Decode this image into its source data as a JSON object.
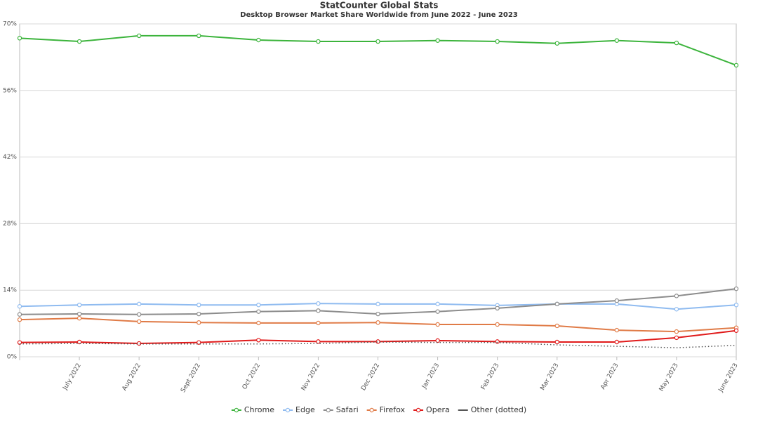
{
  "chart_data": {
    "type": "line",
    "title": "StatCounter Global Stats",
    "subtitle": "Desktop Browser Market Share Worldwide from June 2022 - June 2023",
    "categories": [
      null,
      "July 2022",
      "Aug 2022",
      "Sept 2022",
      "Oct 2022",
      "Nov 2022",
      "Dec 2022",
      "Jan 2023",
      "Feb 2023",
      "Mar 2023",
      "Apr 2023",
      "May 2023",
      "June 2023"
    ],
    "ylim": [
      0,
      70
    ],
    "yticks": [
      {
        "value": 0,
        "label": "0%"
      },
      {
        "value": 14,
        "label": "14%"
      },
      {
        "value": 28,
        "label": "28%"
      },
      {
        "value": 42,
        "label": "42%"
      },
      {
        "value": 56,
        "label": "56%"
      },
      {
        "value": 70,
        "label": "70%"
      }
    ],
    "grid": true,
    "legend": "bottom",
    "series": [
      {
        "name": "Chrome",
        "color": "#3cb43c",
        "markers": true,
        "values": [
          67.0,
          66.3,
          67.5,
          67.5,
          66.6,
          66.3,
          66.3,
          66.5,
          66.3,
          65.9,
          66.5,
          66.0,
          61.3
        ]
      },
      {
        "name": "Edge",
        "color": "#8fbbf0",
        "markers": true,
        "values": [
          10.6,
          10.9,
          11.1,
          10.9,
          10.9,
          11.2,
          11.1,
          11.1,
          10.8,
          11.1,
          11.1,
          10.0,
          10.9
        ]
      },
      {
        "name": "Safari",
        "color": "#8c8c8c",
        "markers": true,
        "values": [
          8.9,
          9.0,
          8.9,
          9.0,
          9.5,
          9.7,
          9.0,
          9.5,
          10.2,
          11.1,
          11.8,
          12.8,
          14.3
        ]
      },
      {
        "name": "Firefox",
        "color": "#e07b47",
        "markers": true,
        "values": [
          7.8,
          8.1,
          7.4,
          7.2,
          7.1,
          7.1,
          7.2,
          6.8,
          6.8,
          6.5,
          5.6,
          5.3,
          6.1
        ]
      },
      {
        "name": "Opera",
        "color": "#e01a1a",
        "markers": true,
        "values": [
          3.0,
          3.1,
          2.8,
          3.0,
          3.5,
          3.2,
          3.2,
          3.4,
          3.2,
          3.1,
          3.1,
          4.0,
          5.5
        ]
      },
      {
        "name": "Other (dotted)",
        "color": "#555555",
        "markers": false,
        "dotted": true,
        "values": [
          2.7,
          2.8,
          2.7,
          2.7,
          2.7,
          2.8,
          3.1,
          3.0,
          3.0,
          2.5,
          2.2,
          1.9,
          2.4
        ]
      }
    ]
  }
}
